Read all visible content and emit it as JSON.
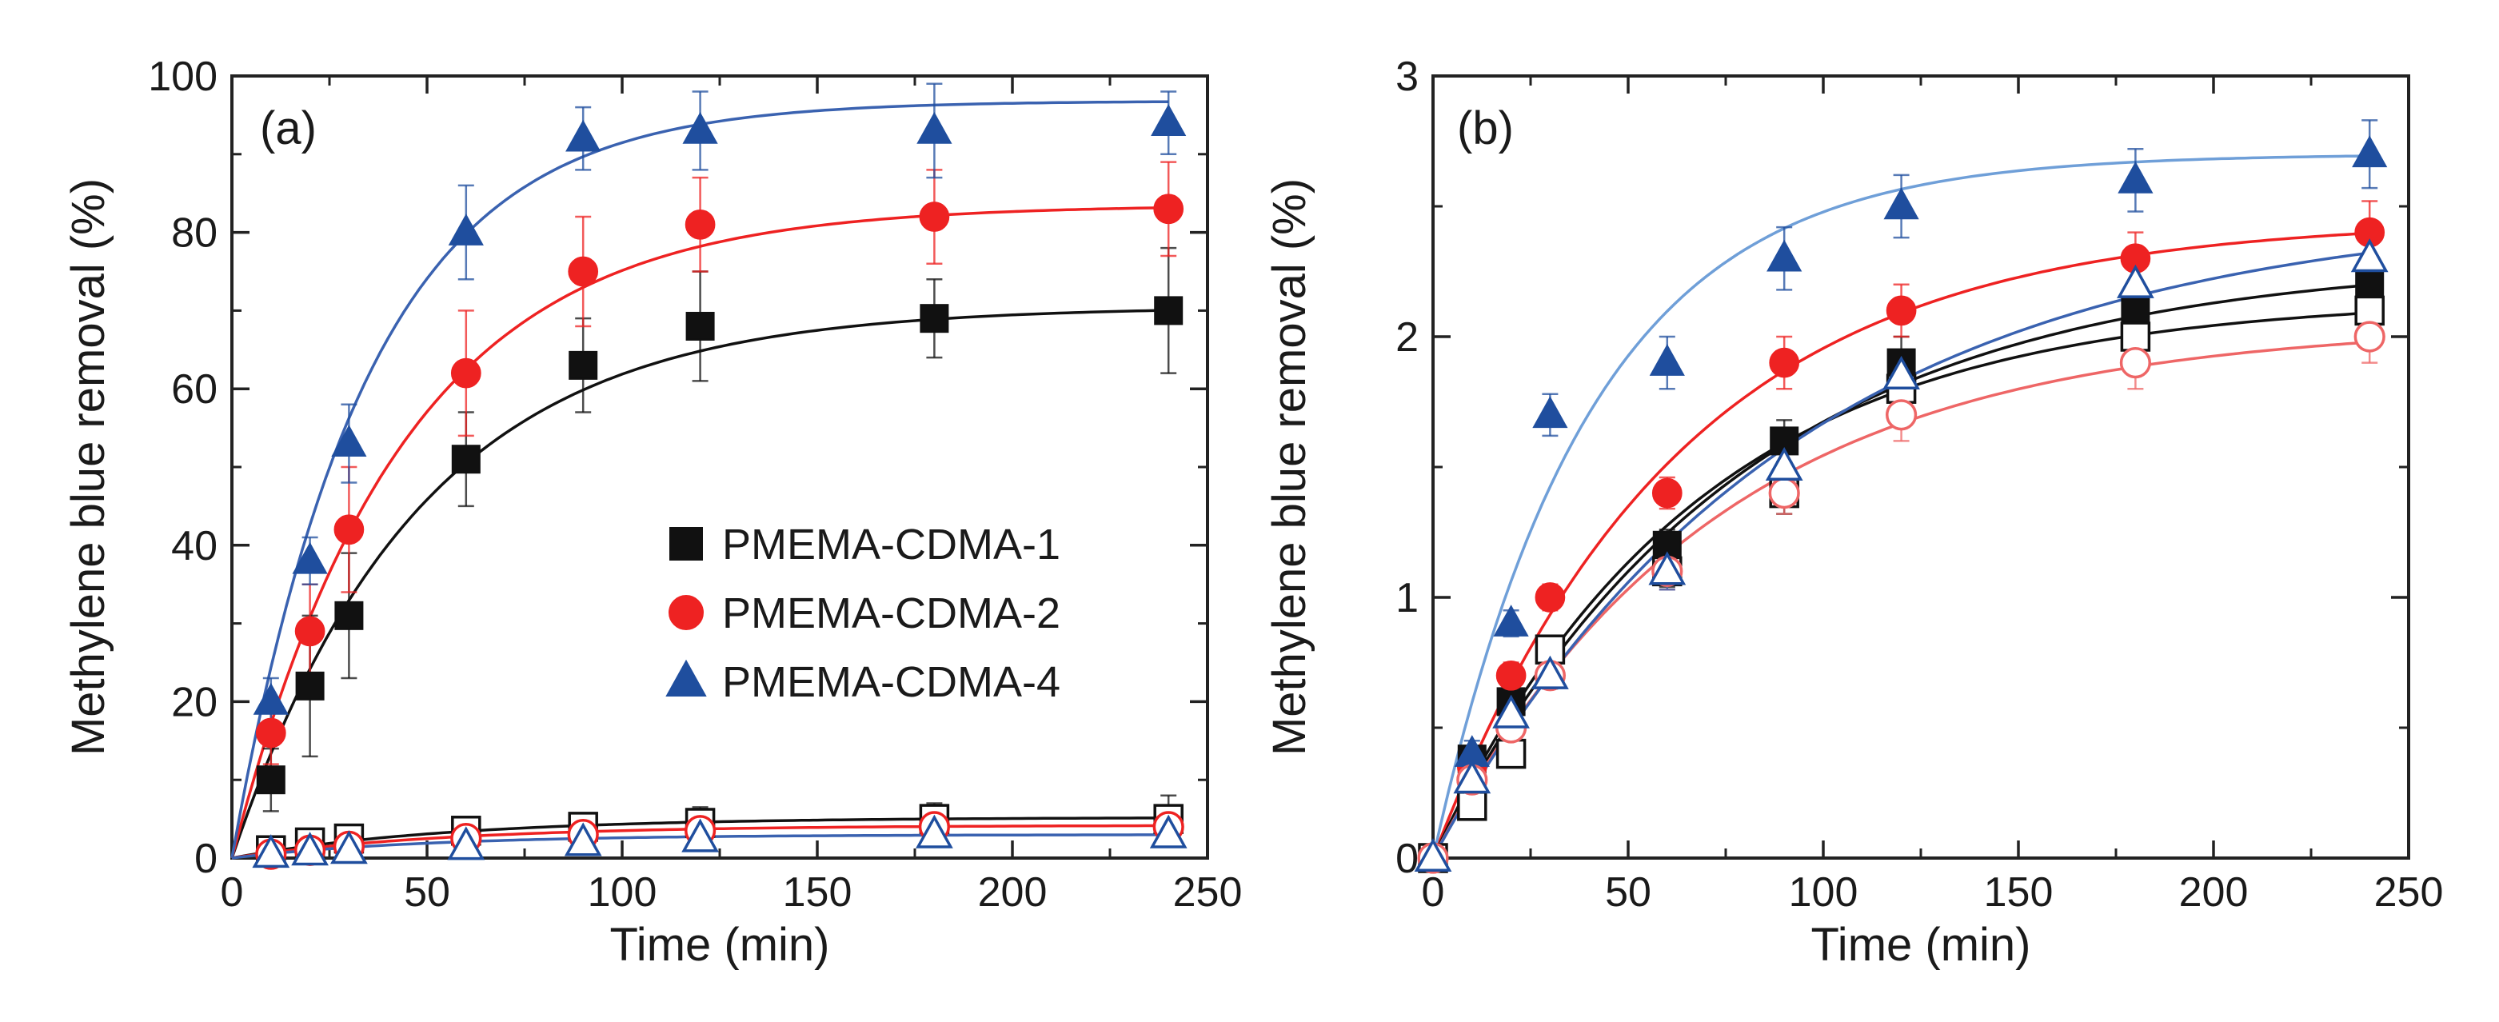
{
  "figure_colors": {
    "black": "#111111",
    "red": "#ee2222",
    "blue": "#1f4e9e",
    "light_blue": "#6f9fd8",
    "pink": "#ee6666"
  },
  "chart_data": [
    {
      "panel": "a",
      "type": "scatter",
      "title": "(a)",
      "xlabel": "Time (min)",
      "ylabel": "Methylene blue removal (%)",
      "xlim": [
        0,
        250
      ],
      "ylim": [
        0,
        100
      ],
      "xticks": [
        0,
        50,
        100,
        150,
        200,
        250
      ],
      "yticks": [
        0,
        20,
        40,
        60,
        80,
        100
      ],
      "legend_position": "center-right",
      "series": [
        {
          "name": "PMEMA-CDMA-1",
          "in_legend": true,
          "marker": "square",
          "filled": true,
          "color": "#111111",
          "fit_color": "#111111",
          "x": [
            10,
            20,
            30,
            60,
            90,
            120,
            180,
            240
          ],
          "y": [
            10,
            22,
            31,
            51,
            63,
            68,
            69,
            70
          ],
          "err": [
            4,
            9,
            8,
            6,
            6,
            7,
            5,
            8
          ],
          "fit": {
            "max": 70.5,
            "k": 0.021
          }
        },
        {
          "name": "PMEMA-CDMA-2",
          "in_legend": true,
          "marker": "circle",
          "filled": true,
          "color": "#ee2222",
          "fit_color": "#ee2222",
          "x": [
            10,
            20,
            30,
            60,
            90,
            120,
            180,
            240
          ],
          "y": [
            16,
            29,
            42,
            62,
            75,
            81,
            82,
            83
          ],
          "err": [
            4,
            6,
            8,
            8,
            7,
            6,
            6,
            6
          ],
          "fit": {
            "max": 83.5,
            "k": 0.023
          }
        },
        {
          "name": "PMEMA-CDMA-4",
          "in_legend": true,
          "marker": "triangle",
          "filled": true,
          "color": "#1f4e9e",
          "fit_color": "#3a62b0",
          "x": [
            10,
            20,
            30,
            60,
            90,
            120,
            180,
            240
          ],
          "y": [
            20,
            38,
            53,
            80,
            92,
            93,
            93,
            94
          ],
          "err": [
            3,
            3,
            5,
            6,
            4,
            5,
            6,
            4
          ],
          "fit": {
            "max": 96.8,
            "k": 0.029
          }
        },
        {
          "name": "PMEMA-CDMA-1 (open)",
          "in_legend": false,
          "marker": "square",
          "filled": false,
          "color": "#111111",
          "fit_color": "#111111",
          "x": [
            10,
            20,
            30,
            60,
            90,
            120,
            180,
            240
          ],
          "y": [
            1,
            2,
            2.5,
            3.5,
            4,
            4.5,
            5,
            5
          ],
          "err": [
            0.5,
            0.8,
            1,
            1,
            1,
            2,
            2,
            3
          ],
          "fit": {
            "max": 5.2,
            "k": 0.018
          }
        },
        {
          "name": "PMEMA-CDMA-2 (open)",
          "in_legend": false,
          "marker": "circle",
          "filled": false,
          "color": "#ee2222",
          "fit_color": "#ee2222",
          "x": [
            10,
            20,
            30,
            60,
            90,
            120,
            180,
            240
          ],
          "y": [
            0.5,
            1,
            1.5,
            2.5,
            3,
            3.5,
            4,
            4
          ],
          "err": [
            0.5,
            0.5,
            0.8,
            1,
            1,
            1,
            1.5,
            1.5
          ],
          "fit": {
            "max": 4.2,
            "k": 0.018
          }
        },
        {
          "name": "PMEMA-CDMA-4 (open)",
          "in_legend": false,
          "marker": "triangle",
          "filled": false,
          "color": "#1f4e9e",
          "fit_color": "#3a62b0",
          "x": [
            10,
            20,
            30,
            60,
            90,
            120,
            180,
            240
          ],
          "y": [
            0.5,
            0.8,
            1,
            1.5,
            2,
            2.5,
            3,
            3
          ],
          "err": [
            0.5,
            0.5,
            0.5,
            0.8,
            0.8,
            1,
            1,
            1
          ],
          "fit": {
            "max": 3.0,
            "k": 0.02
          }
        }
      ]
    },
    {
      "panel": "b",
      "type": "scatter",
      "title": "(b)",
      "xlabel": "Time (min)",
      "ylabel": "Methylene blue removal (%)",
      "xlim": [
        0,
        250
      ],
      "ylim": [
        0,
        3
      ],
      "xticks": [
        0,
        50,
        100,
        150,
        200,
        250
      ],
      "yticks": [
        0,
        1,
        2,
        3
      ],
      "series": [
        {
          "name": "PMEMA-CDMA-1",
          "marker": "square",
          "filled": true,
          "color": "#111111",
          "fit_color": "#111111",
          "x": [
            0,
            10,
            20,
            60,
            90,
            120,
            180,
            240
          ],
          "y": [
            0,
            0.38,
            0.6,
            1.2,
            1.6,
            1.9,
            2.1,
            2.2
          ],
          "err": [
            0,
            0.05,
            0.05,
            0.06,
            0.08,
            0.1,
            0.1,
            0.08
          ],
          "fit": {
            "max": 2.3,
            "k": 0.013
          }
        },
        {
          "name": "PMEMA-CDMA-2",
          "marker": "circle",
          "filled": true,
          "color": "#ee2222",
          "fit_color": "#ee2222",
          "x": [
            0,
            10,
            20,
            30,
            60,
            90,
            120,
            180,
            240
          ],
          "y": [
            0,
            0.35,
            0.7,
            1.0,
            1.4,
            1.9,
            2.1,
            2.3,
            2.4
          ],
          "err": [
            0,
            0.05,
            0.05,
            0.05,
            0.06,
            0.1,
            0.1,
            0.1,
            0.12
          ],
          "fit": {
            "max": 2.45,
            "k": 0.016
          }
        },
        {
          "name": "PMEMA-CDMA-4",
          "marker": "triangle",
          "filled": true,
          "color": "#1f4e9e",
          "fit_color": "#6f9fd8",
          "x": [
            10,
            20,
            30,
            60,
            90,
            120,
            180,
            240
          ],
          "y": [
            0.4,
            0.9,
            1.7,
            1.9,
            2.3,
            2.5,
            2.6,
            2.7
          ],
          "err": [
            0.05,
            0.05,
            0.08,
            0.1,
            0.12,
            0.12,
            0.12,
            0.13
          ],
          "fit": {
            "max": 2.7,
            "k": 0.025
          }
        },
        {
          "name": "PMEMA-CDMA-1 (open)",
          "marker": "square",
          "filled": false,
          "color": "#111111",
          "fit_color": "#111111",
          "x": [
            0,
            10,
            20,
            30,
            60,
            90,
            120,
            180,
            240
          ],
          "y": [
            0,
            0.2,
            0.4,
            0.8,
            1.1,
            1.4,
            1.8,
            2.0,
            2.1
          ],
          "err": [
            0,
            0.03,
            0.04,
            0.05,
            0.06,
            0.08,
            0.1,
            0.1,
            0.1
          ],
          "fit": {
            "max": 2.15,
            "k": 0.015
          }
        },
        {
          "name": "PMEMA-CDMA-2 (open)",
          "marker": "circle",
          "filled": false,
          "color": "#ee6666",
          "fit_color": "#ee6666",
          "x": [
            0,
            10,
            20,
            30,
            60,
            90,
            120,
            180,
            240
          ],
          "y": [
            0,
            0.3,
            0.5,
            0.7,
            1.1,
            1.4,
            1.7,
            1.9,
            2.0
          ],
          "err": [
            0,
            0.04,
            0.05,
            0.05,
            0.07,
            0.08,
            0.1,
            0.1,
            0.1
          ],
          "fit": {
            "max": 2.05,
            "k": 0.014
          }
        },
        {
          "name": "PMEMA-CDMA-4 (open)",
          "marker": "triangle",
          "filled": false,
          "color": "#1f4e9e",
          "fit_color": "#3a62b0",
          "x": [
            0,
            10,
            20,
            30,
            60,
            90,
            120,
            180,
            240
          ],
          "y": [
            0,
            0.3,
            0.55,
            0.7,
            1.1,
            1.5,
            1.85,
            2.2,
            2.3
          ],
          "err": [
            0,
            0.04,
            0.05,
            0.05,
            0.07,
            0.08,
            0.1,
            0.1,
            0.1
          ],
          "fit": {
            "max": 2.5,
            "k": 0.011
          }
        }
      ]
    }
  ]
}
